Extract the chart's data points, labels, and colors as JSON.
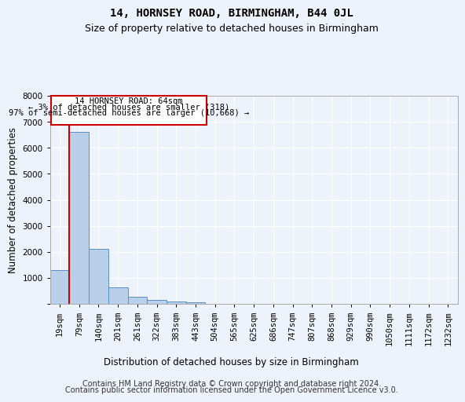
{
  "title1": "14, HORNSEY ROAD, BIRMINGHAM, B44 0JL",
  "title2": "Size of property relative to detached houses in Birmingham",
  "xlabel": "Distribution of detached houses by size in Birmingham",
  "ylabel": "Number of detached properties",
  "footer1": "Contains HM Land Registry data © Crown copyright and database right 2024.",
  "footer2": "Contains public sector information licensed under the Open Government Licence v3.0.",
  "annotation_line1": "14 HORNSEY ROAD: 64sqm",
  "annotation_line2": "← 3% of detached houses are smaller (318)",
  "annotation_line3": "97% of semi-detached houses are larger (10,668) →",
  "bar_values": [
    1300,
    6600,
    2100,
    620,
    260,
    140,
    100,
    70,
    0,
    0,
    0,
    0,
    0,
    0,
    0,
    0,
    0,
    0,
    0,
    0,
    0
  ],
  "categories": [
    "19sqm",
    "79sqm",
    "140sqm",
    "201sqm",
    "261sqm",
    "322sqm",
    "383sqm",
    "443sqm",
    "504sqm",
    "565sqm",
    "625sqm",
    "686sqm",
    "747sqm",
    "807sqm",
    "868sqm",
    "929sqm",
    "990sqm",
    "1050sqm",
    "1111sqm",
    "1172sqm",
    "1232sqm"
  ],
  "bar_color": "#b8d0ea",
  "bar_edge_color": "#5a8fc0",
  "marker_color": "#cc0000",
  "ylim": [
    0,
    8000
  ],
  "yticks": [
    0,
    1000,
    2000,
    3000,
    4000,
    5000,
    6000,
    7000,
    8000
  ],
  "background_color": "#eef2fa",
  "axes_bg_color": "#eef2fa",
  "annotation_box_color": "#ffffff",
  "annotation_box_edge": "#cc0000",
  "grid_color": "#ffffff",
  "title1_fontsize": 10,
  "title2_fontsize": 9,
  "axis_label_fontsize": 8.5,
  "tick_fontsize": 7.5,
  "footer_fontsize": 7
}
